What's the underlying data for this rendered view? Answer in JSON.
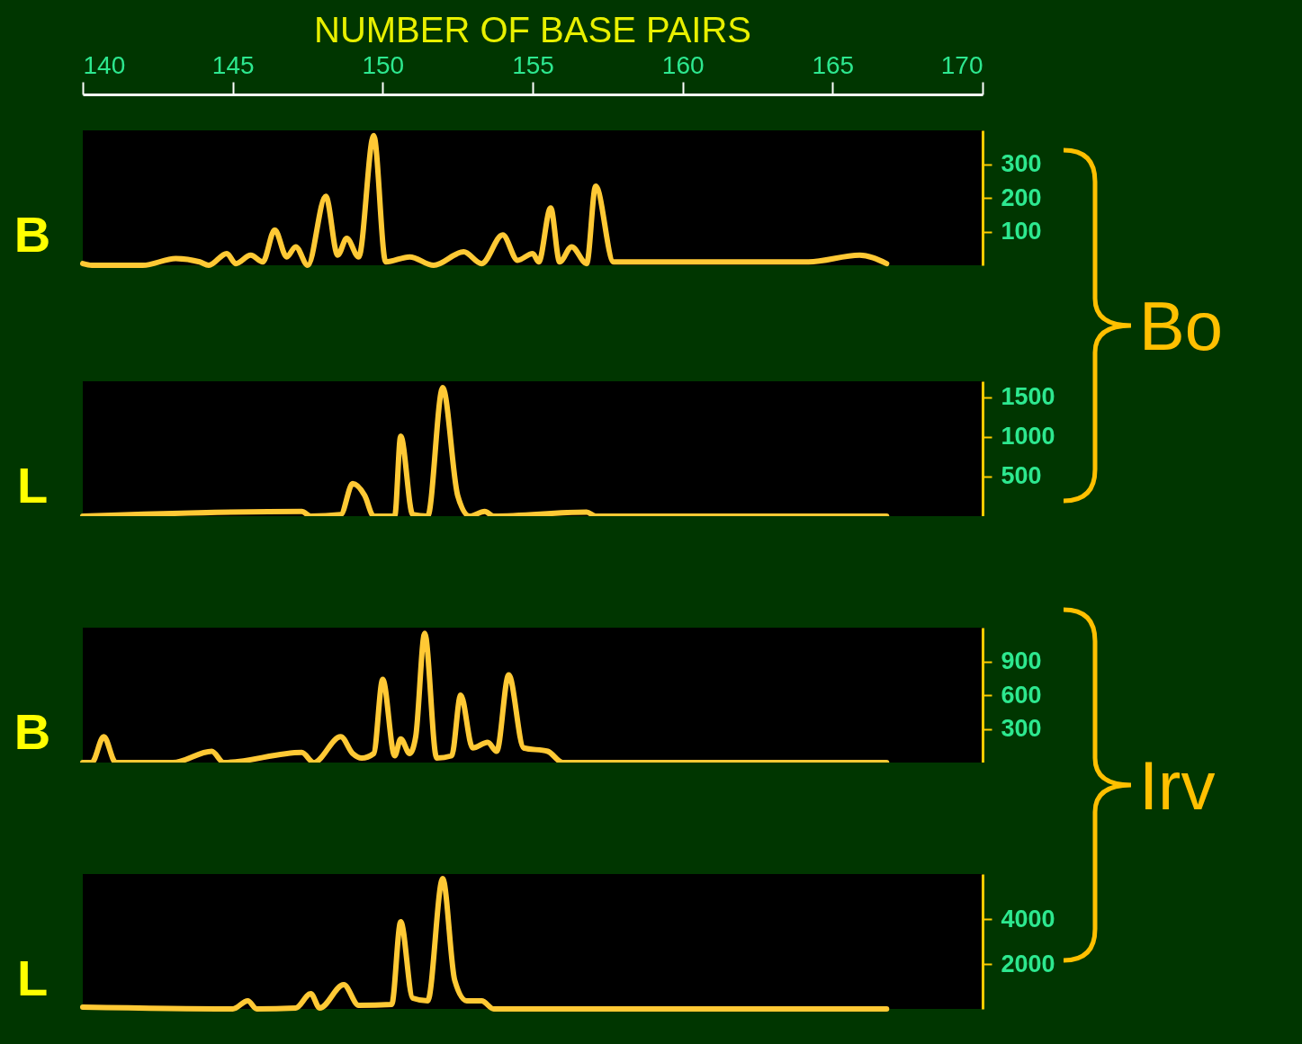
{
  "chart_data": [
    {
      "type": "line",
      "title": "NUMBER OF BASE PAIRS",
      "ylabel": "B",
      "annotations": [
        "Bo"
      ],
      "color": "#ffc935",
      "xlim": [
        140,
        170
      ],
      "xticks": [
        140,
        145,
        150,
        155,
        160,
        165,
        170
      ],
      "ylim": [
        0,
        400
      ],
      "yticks": [
        100,
        200,
        300
      ],
      "x": [
        140,
        140.3,
        142.0,
        143.1,
        143.9,
        144.2,
        144.8,
        145.1,
        145.6,
        146.0,
        146.4,
        146.8,
        147.1,
        147.5,
        148.1,
        148.5,
        148.8,
        149.2,
        149.7,
        150.1,
        150.9,
        151.7,
        152.7,
        153.3,
        154.0,
        154.5,
        155.0,
        155.2,
        155.6,
        155.9,
        156.3,
        156.8,
        157.1,
        157.7,
        158.7,
        164.2,
        165.9,
        166.8
      ],
      "values": [
        5,
        0,
        0,
        20,
        10,
        0,
        35,
        5,
        30,
        10,
        105,
        25,
        55,
        0,
        205,
        30,
        80,
        25,
        385,
        10,
        25,
        0,
        40,
        5,
        90,
        15,
        35,
        10,
        170,
        10,
        55,
        5,
        235,
        10,
        10,
        10,
        30,
        5
      ]
    },
    {
      "type": "line",
      "ylabel": "L",
      "color": "#ffc935",
      "xlim": [
        140,
        170
      ],
      "ylim": [
        0,
        1700
      ],
      "yticks": [
        500,
        1000,
        1500
      ],
      "tick_labels": "y",
      "x": [
        140,
        147.3,
        147.6,
        148.6,
        149.0,
        149.4,
        149.7,
        150.4,
        150.6,
        151.0,
        151.5,
        152.0,
        152.5,
        152.9,
        153.4,
        153.7,
        156.8,
        157.1,
        166.8
      ],
      "values": [
        0,
        60,
        0,
        20,
        410,
        260,
        0,
        0,
        1010,
        20,
        0,
        1620,
        260,
        0,
        60,
        0,
        50,
        0,
        0
      ]
    },
    {
      "type": "line",
      "ylabel": "B",
      "annotations": [
        "Irv"
      ],
      "color": "#ffc935",
      "xlim": [
        140,
        170
      ],
      "ylim": [
        0,
        1200
      ],
      "yticks": [
        300,
        600,
        900
      ],
      "tick_labels": "y",
      "x": [
        140,
        140.3,
        140.7,
        141.1,
        143.0,
        144.3,
        144.7,
        147.3,
        147.7,
        148.6,
        149.0,
        149.3,
        149.7,
        150.0,
        150.4,
        150.6,
        150.9,
        151.1,
        151.4,
        151.8,
        152.3,
        152.6,
        153.0,
        153.5,
        153.8,
        154.2,
        154.7,
        155.5,
        156.0,
        166.8
      ],
      "values": [
        0,
        0,
        230,
        0,
        0,
        100,
        0,
        90,
        0,
        230,
        80,
        40,
        80,
        740,
        60,
        210,
        80,
        230,
        1150,
        40,
        60,
        600,
        130,
        180,
        100,
        780,
        130,
        100,
        0,
        0
      ]
    },
    {
      "type": "line",
      "ylabel": "L",
      "color": "#ffc935",
      "xlim": [
        140,
        170
      ],
      "ylim": [
        0,
        6000
      ],
      "yticks": [
        2000,
        4000
      ],
      "tick_labels": "y",
      "x": [
        140,
        145.0,
        145.5,
        145.8,
        147.1,
        147.6,
        147.9,
        148.7,
        149.2,
        150.3,
        150.6,
        151.0,
        151.5,
        152.0,
        152.4,
        152.8,
        153.3,
        153.7,
        166.8
      ],
      "values": [
        80,
        0,
        360,
        0,
        40,
        680,
        40,
        1080,
        160,
        200,
        3880,
        480,
        360,
        5800,
        1280,
        360,
        360,
        0,
        0
      ]
    }
  ]
}
